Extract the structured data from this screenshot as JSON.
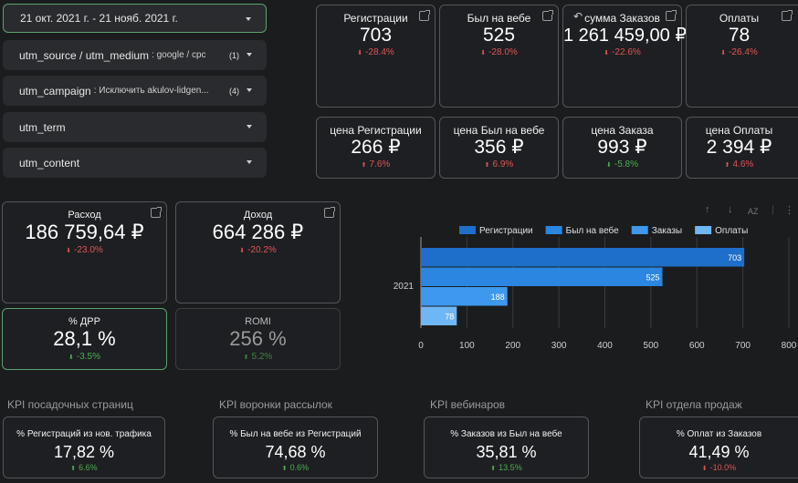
{
  "filters": [
    {
      "label": "21 окт. 2021 г. - 21 нояб. 2021 г.",
      "sub": "",
      "count": ""
    },
    {
      "label": "utm_source / utm_medium",
      "sub": ": google / cpc",
      "count": "(1)"
    },
    {
      "label": "utm_campaign",
      "sub": ": Исключить akulov-lidgen...",
      "count": "(4)"
    },
    {
      "label": "utm_term",
      "sub": "",
      "count": ""
    },
    {
      "label": "utm_content",
      "sub": "",
      "count": ""
    }
  ],
  "metrics_top": [
    {
      "title": "Регистрации",
      "value": "703",
      "delta": "-28.4%"
    },
    {
      "title": "Был на вебе",
      "value": "525",
      "delta": "-28.0%"
    },
    {
      "title": "сумма Заказов",
      "value": "1 261 459,00 ₽",
      "delta": "-22.6%"
    },
    {
      "title": "Оплаты",
      "value": "78",
      "delta": "-26.4%"
    }
  ],
  "metrics_price": [
    {
      "title": "цена Регистрации",
      "value": "266 ₽",
      "delta": "7.6%"
    },
    {
      "title": "цена Был на вебе",
      "value": "356 ₽",
      "delta": "6.9%"
    },
    {
      "title": "цена Заказа",
      "value": "993 ₽",
      "delta": "-5.8%"
    },
    {
      "title": "цена Оплаты",
      "value": "2 394 ₽",
      "delta": "4.6%"
    }
  ],
  "finance": {
    "expense": {
      "title": "Расход",
      "value": "186 759,64 ₽",
      "delta": "-23.0%"
    },
    "income": {
      "title": "Доход",
      "value": "664 286 ₽",
      "delta": "-20.2%"
    },
    "drr": {
      "title": "% ДРР",
      "value": "28,1 %",
      "delta": "-3.5%"
    },
    "romi": {
      "title": "ROMI",
      "value": "256 %",
      "delta": "5.2%"
    }
  },
  "kpi": [
    {
      "section": "KPI посадочных страниц",
      "title": "% Регистраций из нов. трафика",
      "value": "17,82 %",
      "delta": "6.6%"
    },
    {
      "section": "KPI воронки рассылок",
      "title": "% Был на вебе из Регистраций",
      "value": "74,68 %",
      "delta": "0.6%"
    },
    {
      "section": "KPI вебинаров",
      "title": "% Заказов из Был на вебе",
      "value": "35,81 %",
      "delta": "13.5%"
    },
    {
      "section": "KPI отдела продаж",
      "title": "% Оплат из Заказов",
      "value": "41,49 %",
      "delta": "-10.0%"
    }
  ],
  "chart_toolbar": {
    "sort_label": "AZ"
  },
  "chart_data": {
    "type": "bar",
    "orientation": "horizontal",
    "categories": [
      "2021"
    ],
    "series": [
      {
        "name": "Регистрации",
        "values": [
          703
        ],
        "color": "#1e6fc9"
      },
      {
        "name": "Был на вебе",
        "values": [
          525
        ],
        "color": "#2a86e0"
      },
      {
        "name": "Заказы",
        "values": [
          188
        ],
        "color": "#3d98ee"
      },
      {
        "name": "Оплаты",
        "values": [
          78
        ],
        "color": "#6fb6f5"
      }
    ],
    "xlim": [
      0,
      800
    ],
    "xticks": [
      "0",
      "100",
      "200",
      "300",
      "400",
      "500",
      "600",
      "700",
      "800"
    ],
    "legend": "top",
    "grid": true
  }
}
